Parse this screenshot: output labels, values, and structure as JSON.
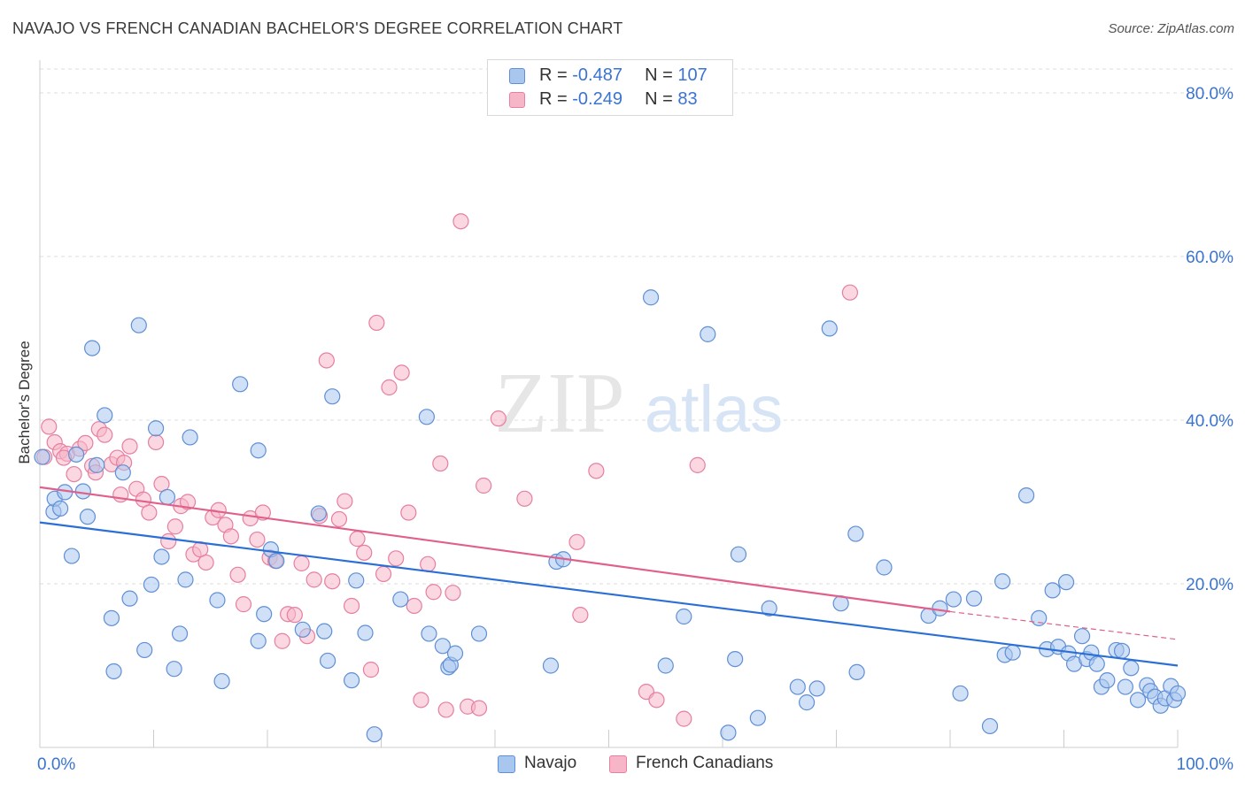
{
  "title": "NAVAJO VS FRENCH CANADIAN BACHELOR'S DEGREE CORRELATION CHART",
  "source": "Source: ZipAtlas.com",
  "watermark": {
    "zip": "ZIP",
    "atlas": "atlas"
  },
  "legend": {
    "rows": [
      {
        "r_label": "R = ",
        "r_value": "-0.487",
        "n_label": "N = ",
        "n_value": "107"
      },
      {
        "r_label": "R = ",
        "r_value": "-0.249",
        "n_label": "N = ",
        "n_value": "83"
      }
    ]
  },
  "colors": {
    "navajo_fill": "#a9c6ee",
    "navajo_stroke": "#5f8fd6",
    "navajo_line": "#2a6fd6",
    "french_fill": "#f6b6c8",
    "french_stroke": "#e67fa0",
    "french_line": "#e0608a",
    "axis_text": "#3a74d0",
    "grid": "#dddddd"
  },
  "chart_data": {
    "type": "scatter",
    "title": "NAVAJO VS FRENCH CANADIAN BACHELOR'S DEGREE CORRELATION CHART",
    "xlabel": "",
    "ylabel": "Bachelor's Degree",
    "xlim": [
      0,
      100
    ],
    "ylim": [
      0,
      84
    ],
    "x_tick_labels": [
      "0.0%",
      "100.0%"
    ],
    "y_ticks": [
      20,
      40,
      60,
      80
    ],
    "y_tick_labels": [
      "20.0%",
      "40.0%",
      "60.0%",
      "80.0%"
    ],
    "grid": true,
    "legend_position": "top-center",
    "series": [
      {
        "name": "Navajo",
        "trend": {
          "x": [
            0,
            100
          ],
          "y": [
            27.5,
            10.0
          ]
        },
        "points": [
          [
            0.2,
            35.5
          ],
          [
            1.2,
            28.8
          ],
          [
            1.3,
            30.4
          ],
          [
            1.8,
            29.2
          ],
          [
            2.2,
            31.2
          ],
          [
            2.8,
            23.4
          ],
          [
            3.2,
            35.8
          ],
          [
            3.8,
            31.3
          ],
          [
            4.2,
            28.2
          ],
          [
            4.6,
            48.8
          ],
          [
            5.0,
            34.5
          ],
          [
            5.7,
            40.6
          ],
          [
            6.3,
            15.8
          ],
          [
            6.5,
            9.3
          ],
          [
            7.3,
            33.6
          ],
          [
            7.9,
            18.2
          ],
          [
            8.7,
            51.6
          ],
          [
            9.2,
            11.9
          ],
          [
            9.8,
            19.9
          ],
          [
            10.2,
            39.0
          ],
          [
            10.7,
            23.3
          ],
          [
            11.2,
            30.6
          ],
          [
            11.8,
            9.6
          ],
          [
            12.3,
            13.9
          ],
          [
            12.8,
            20.5
          ],
          [
            13.2,
            37.9
          ],
          [
            15.6,
            18.0
          ],
          [
            16.0,
            8.1
          ],
          [
            17.6,
            44.4
          ],
          [
            19.2,
            36.3
          ],
          [
            19.2,
            13.0
          ],
          [
            19.7,
            16.3
          ],
          [
            20.3,
            24.2
          ],
          [
            20.8,
            22.8
          ],
          [
            23.1,
            14.4
          ],
          [
            24.5,
            28.6
          ],
          [
            25.0,
            14.2
          ],
          [
            25.3,
            10.6
          ],
          [
            25.7,
            42.9
          ],
          [
            27.4,
            8.2
          ],
          [
            27.8,
            20.4
          ],
          [
            28.6,
            14.0
          ],
          [
            29.4,
            1.6
          ],
          [
            31.7,
            18.1
          ],
          [
            34.0,
            40.4
          ],
          [
            34.2,
            13.9
          ],
          [
            35.4,
            12.4
          ],
          [
            35.9,
            9.8
          ],
          [
            36.1,
            10.1
          ],
          [
            36.5,
            11.5
          ],
          [
            38.6,
            13.9
          ],
          [
            44.9,
            10.0
          ],
          [
            45.4,
            22.7
          ],
          [
            46.0,
            23.0
          ],
          [
            53.7,
            55.0
          ],
          [
            55.0,
            10.0
          ],
          [
            56.6,
            16.0
          ],
          [
            58.7,
            50.5
          ],
          [
            60.5,
            1.8
          ],
          [
            61.1,
            10.8
          ],
          [
            61.4,
            23.6
          ],
          [
            63.1,
            3.6
          ],
          [
            64.1,
            17.0
          ],
          [
            66.6,
            7.4
          ],
          [
            67.4,
            5.5
          ],
          [
            68.3,
            7.2
          ],
          [
            69.4,
            51.2
          ],
          [
            70.4,
            17.6
          ],
          [
            71.7,
            26.1
          ],
          [
            71.8,
            9.2
          ],
          [
            74.2,
            22.0
          ],
          [
            78.1,
            16.1
          ],
          [
            79.1,
            17.0
          ],
          [
            80.3,
            18.1
          ],
          [
            80.9,
            6.6
          ],
          [
            82.1,
            18.2
          ],
          [
            83.5,
            2.6
          ],
          [
            84.6,
            20.3
          ],
          [
            84.8,
            11.3
          ],
          [
            85.5,
            11.6
          ],
          [
            86.7,
            30.8
          ],
          [
            87.8,
            15.8
          ],
          [
            88.5,
            12.0
          ],
          [
            89.0,
            19.2
          ],
          [
            89.5,
            12.3
          ],
          [
            90.2,
            20.2
          ],
          [
            90.4,
            11.5
          ],
          [
            90.9,
            10.2
          ],
          [
            91.6,
            13.6
          ],
          [
            92.0,
            10.8
          ],
          [
            92.4,
            11.6
          ],
          [
            92.9,
            10.2
          ],
          [
            93.3,
            7.4
          ],
          [
            93.8,
            8.2
          ],
          [
            94.6,
            11.9
          ],
          [
            95.1,
            11.8
          ],
          [
            95.4,
            7.4
          ],
          [
            95.9,
            9.7
          ],
          [
            96.5,
            5.8
          ],
          [
            97.3,
            7.6
          ],
          [
            97.6,
            6.9
          ],
          [
            98.0,
            6.2
          ],
          [
            98.5,
            5.1
          ],
          [
            98.9,
            6.0
          ],
          [
            99.4,
            7.5
          ],
          [
            99.7,
            5.8
          ],
          [
            100.0,
            6.6
          ]
        ]
      },
      {
        "name": "French Canadians",
        "trend": {
          "x": [
            0,
            80
          ],
          "y": [
            31.8,
            16.6
          ]
        },
        "trend_dashed": {
          "x": [
            80,
            100
          ],
          "y": [
            16.6,
            13.2
          ]
        },
        "points": [
          [
            0.4,
            35.5
          ],
          [
            0.8,
            39.2
          ],
          [
            1.3,
            37.3
          ],
          [
            1.8,
            36.2
          ],
          [
            2.4,
            35.9
          ],
          [
            3.0,
            33.4
          ],
          [
            3.5,
            36.5
          ],
          [
            4.0,
            37.2
          ],
          [
            4.6,
            34.4
          ],
          [
            5.2,
            38.9
          ],
          [
            5.7,
            38.2
          ],
          [
            6.3,
            34.6
          ],
          [
            6.8,
            35.4
          ],
          [
            7.4,
            34.8
          ],
          [
            7.9,
            36.8
          ],
          [
            8.5,
            31.6
          ],
          [
            9.1,
            30.3
          ],
          [
            9.6,
            28.7
          ],
          [
            10.2,
            37.3
          ],
          [
            10.7,
            32.2
          ],
          [
            11.3,
            25.2
          ],
          [
            11.9,
            27.0
          ],
          [
            12.4,
            29.5
          ],
          [
            13.0,
            30.0
          ],
          [
            13.5,
            23.6
          ],
          [
            14.1,
            24.2
          ],
          [
            14.6,
            22.6
          ],
          [
            15.2,
            28.1
          ],
          [
            15.7,
            29.0
          ],
          [
            16.3,
            27.2
          ],
          [
            16.8,
            25.8
          ],
          [
            17.4,
            21.1
          ],
          [
            17.9,
            17.5
          ],
          [
            18.5,
            28.0
          ],
          [
            19.1,
            25.4
          ],
          [
            19.6,
            28.7
          ],
          [
            20.2,
            23.2
          ],
          [
            20.7,
            22.8
          ],
          [
            21.3,
            13.0
          ],
          [
            21.8,
            16.3
          ],
          [
            22.4,
            16.2
          ],
          [
            23.0,
            22.5
          ],
          [
            23.5,
            13.6
          ],
          [
            24.1,
            20.5
          ],
          [
            24.6,
            28.3
          ],
          [
            25.2,
            47.3
          ],
          [
            25.7,
            20.3
          ],
          [
            26.3,
            27.9
          ],
          [
            26.8,
            30.1
          ],
          [
            27.4,
            17.3
          ],
          [
            27.9,
            25.5
          ],
          [
            28.5,
            23.8
          ],
          [
            29.1,
            9.5
          ],
          [
            29.6,
            51.9
          ],
          [
            30.2,
            21.2
          ],
          [
            30.7,
            44.0
          ],
          [
            31.3,
            23.1
          ],
          [
            31.8,
            45.8
          ],
          [
            32.4,
            28.7
          ],
          [
            32.9,
            17.3
          ],
          [
            33.5,
            5.8
          ],
          [
            34.1,
            22.4
          ],
          [
            34.6,
            19.0
          ],
          [
            35.2,
            34.7
          ],
          [
            35.7,
            4.6
          ],
          [
            36.3,
            18.9
          ],
          [
            37.0,
            64.3
          ],
          [
            37.6,
            5.0
          ],
          [
            38.6,
            4.8
          ],
          [
            39.0,
            32.0
          ],
          [
            40.3,
            40.2
          ],
          [
            42.6,
            30.4
          ],
          [
            47.2,
            25.1
          ],
          [
            47.5,
            16.2
          ],
          [
            48.9,
            33.8
          ],
          [
            53.3,
            6.8
          ],
          [
            54.2,
            5.8
          ],
          [
            56.6,
            3.5
          ],
          [
            57.8,
            34.5
          ],
          [
            71.2,
            55.6
          ],
          [
            2.1,
            35.4
          ],
          [
            4.9,
            33.6
          ],
          [
            7.1,
            30.9
          ]
        ]
      }
    ]
  }
}
